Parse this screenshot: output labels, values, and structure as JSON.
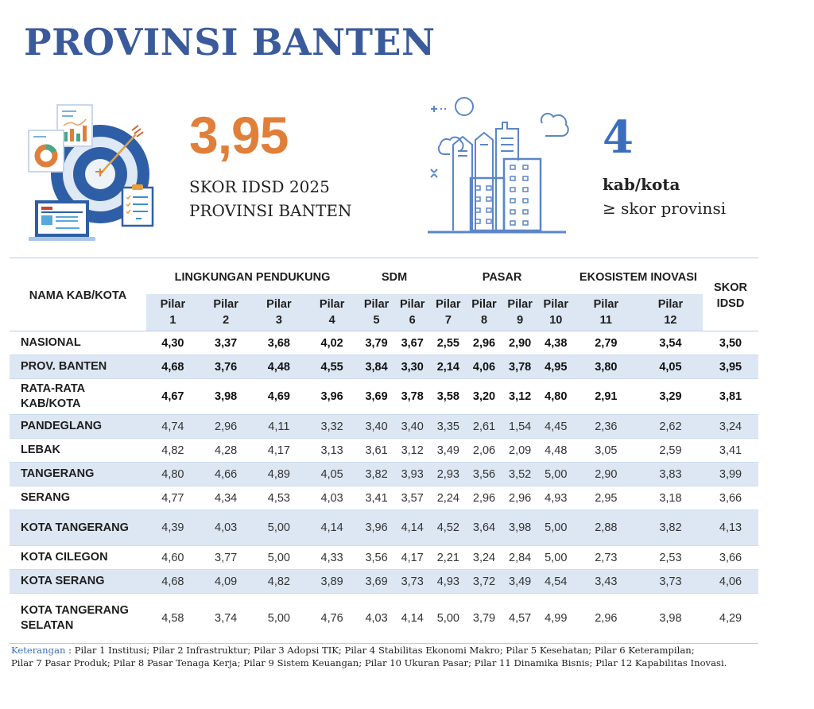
{
  "title": "PROVINSI BANTEN",
  "score": {
    "value": "3,95",
    "label_line1": "SKOR IDSD 2025",
    "label_line2": "PROVINSI BANTEN",
    "icon": "target-analytics-illustration"
  },
  "count": {
    "value": "4",
    "label_line1": "kab/kota",
    "label_line2": "≥ skor provinsi",
    "icon": "city-buildings-illustration"
  },
  "colors": {
    "title": "#3a5a9c",
    "score_accent": "#e07f3a",
    "count_accent": "#3a6dbd",
    "row_band": "#dde7f3"
  },
  "table": {
    "name_header": "NAMA KAB/KOTA",
    "skor_header_line1": "SKOR",
    "skor_header_line2": "IDSD",
    "groups": [
      {
        "label": "LINGKUNGAN PENDUKUNG",
        "span": 4
      },
      {
        "label": "SDM",
        "span": 2
      },
      {
        "label": "PASAR",
        "span": 4
      },
      {
        "label": "EKOSISTEM INOVASI",
        "span": 2
      }
    ],
    "pilar_word": "Pilar",
    "pilars": [
      "1",
      "2",
      "3",
      "4",
      "5",
      "6",
      "7",
      "8",
      "9",
      "10",
      "11",
      "12"
    ],
    "rows": [
      {
        "name": "NASIONAL",
        "bold": true,
        "values": [
          "4,30",
          "3,37",
          "3,68",
          "4,02",
          "3,79",
          "3,67",
          "2,55",
          "2,96",
          "2,90",
          "4,38",
          "2,79",
          "3,54"
        ],
        "skor": "3,50"
      },
      {
        "name": "PROV. BANTEN",
        "bold": true,
        "values": [
          "4,68",
          "3,76",
          "4,48",
          "4,55",
          "3,84",
          "3,30",
          "2,14",
          "4,06",
          "3,78",
          "4,95",
          "3,80",
          "4,05"
        ],
        "skor": "3,95"
      },
      {
        "name": "RATA-RATA KAB/KOTA",
        "bold": true,
        "values": [
          "4,67",
          "3,98",
          "4,69",
          "3,96",
          "3,69",
          "3,78",
          "3,58",
          "3,20",
          "3,12",
          "4,80",
          "2,91",
          "3,29"
        ],
        "skor": "3,81"
      },
      {
        "name": "PANDEGLANG",
        "bold": false,
        "values": [
          "4,74",
          "2,96",
          "4,11",
          "3,32",
          "3,40",
          "3,40",
          "3,35",
          "2,61",
          "1,54",
          "4,45",
          "2,36",
          "2,62"
        ],
        "skor": "3,24"
      },
      {
        "name": "LEBAK",
        "bold": false,
        "values": [
          "4,82",
          "4,28",
          "4,17",
          "3,13",
          "3,61",
          "3,12",
          "3,49",
          "2,06",
          "2,09",
          "4,48",
          "3,05",
          "2,59"
        ],
        "skor": "3,41"
      },
      {
        "name": "TANGERANG",
        "bold": false,
        "values": [
          "4,80",
          "4,66",
          "4,89",
          "4,05",
          "3,82",
          "3,93",
          "2,93",
          "3,56",
          "3,52",
          "5,00",
          "2,90",
          "3,83"
        ],
        "skor": "3,99"
      },
      {
        "name": "SERANG",
        "bold": false,
        "values": [
          "4,77",
          "4,34",
          "4,53",
          "4,03",
          "3,41",
          "3,57",
          "2,24",
          "2,96",
          "2,96",
          "4,93",
          "2,95",
          "3,18"
        ],
        "skor": "3,66"
      },
      {
        "name": "KOTA TANGERANG",
        "bold": false,
        "values": [
          "4,39",
          "4,03",
          "5,00",
          "4,14",
          "3,96",
          "4,14",
          "4,52",
          "3,64",
          "3,98",
          "5,00",
          "2,88",
          "3,82"
        ],
        "skor": "4,13"
      },
      {
        "name": "KOTA CILEGON",
        "bold": false,
        "values": [
          "4,60",
          "3,77",
          "5,00",
          "4,33",
          "3,56",
          "4,17",
          "2,21",
          "3,24",
          "2,84",
          "5,00",
          "2,73",
          "2,53"
        ],
        "skor": "3,66"
      },
      {
        "name": "KOTA SERANG",
        "bold": false,
        "values": [
          "4,68",
          "4,09",
          "4,82",
          "3,89",
          "3,69",
          "3,73",
          "4,93",
          "3,72",
          "3,49",
          "4,54",
          "3,43",
          "3,73"
        ],
        "skor": "4,06"
      },
      {
        "name": "KOTA TANGERANG SELATAN",
        "bold": false,
        "values": [
          "4,58",
          "3,74",
          "5,00",
          "4,76",
          "4,03",
          "4,14",
          "5,00",
          "3,79",
          "4,57",
          "4,99",
          "2,96",
          "3,98"
        ],
        "skor": "4,29"
      }
    ]
  },
  "note": {
    "key": "Keterangan",
    "separator": " : ",
    "line1": "Pilar 1 Institusi; Pilar 2 Infrastruktur; Pilar 3 Adopsi TIK; Pilar 4 Stabilitas Ekonomi Makro; Pilar 5 Kesehatan; Pilar 6 Keterampilan;",
    "line2": "Pilar 7 Pasar Produk; Pilar 8 Pasar Tenaga Kerja; Pilar 9 Sistem Keuangan; Pilar 10 Ukuran Pasar; Pilar 11 Dinamika Bisnis; Pilar 12 Kapabilitas Inovasi."
  }
}
